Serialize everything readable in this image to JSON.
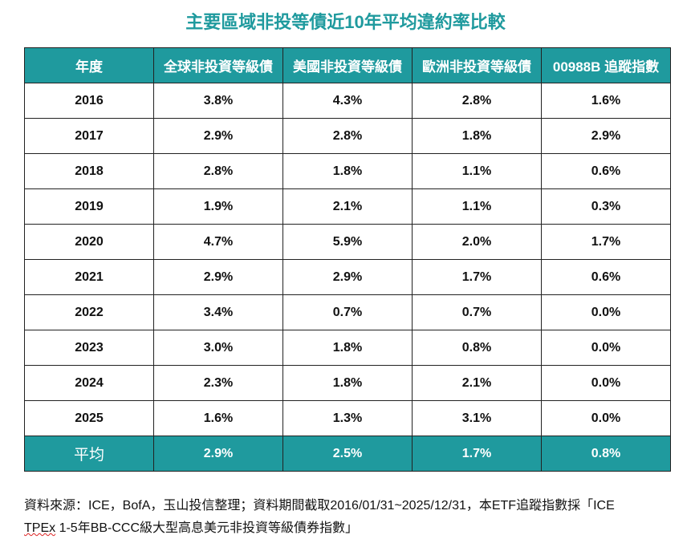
{
  "title": "主要區域非投等債近10年平均違約率比較",
  "headers": [
    "年度",
    "全球非投資等級債",
    "美國非投資等級債",
    "歐洲非投資等級債",
    "00988B 追蹤指數"
  ],
  "rows": [
    [
      "2016",
      "3.8%",
      "4.3%",
      "2.8%",
      "1.6%"
    ],
    [
      "2017",
      "2.9%",
      "2.8%",
      "1.8%",
      "2.9%"
    ],
    [
      "2018",
      "2.8%",
      "1.8%",
      "1.1%",
      "0.6%"
    ],
    [
      "2019",
      "1.9%",
      "2.1%",
      "1.1%",
      "0.3%"
    ],
    [
      "2020",
      "4.7%",
      "5.9%",
      "2.0%",
      "1.7%"
    ],
    [
      "2021",
      "2.9%",
      "2.9%",
      "1.7%",
      "0.6%"
    ],
    [
      "2022",
      "3.4%",
      "0.7%",
      "0.7%",
      "0.0%"
    ],
    [
      "2023",
      "3.0%",
      "1.8%",
      "0.8%",
      "0.0%"
    ],
    [
      "2024",
      "2.3%",
      "1.8%",
      "2.1%",
      "0.0%"
    ],
    [
      "2025",
      "1.6%",
      "1.3%",
      "3.1%",
      "0.0%"
    ]
  ],
  "average": [
    "平均",
    "2.9%",
    "2.5%",
    "1.7%",
    "0.8%"
  ],
  "footnote": {
    "line1": "資料來源：ICE，BofA，玉山投信整理；資料期間截取2016/01/31~2025/12/31，本ETF追蹤指數採「ICE",
    "spell_word": "TPEx",
    "line2_rest": " 1-5年BB-CCC級大型高息美元非投資等級債券指數」"
  },
  "colors": {
    "accent": "#1f9a9e"
  }
}
